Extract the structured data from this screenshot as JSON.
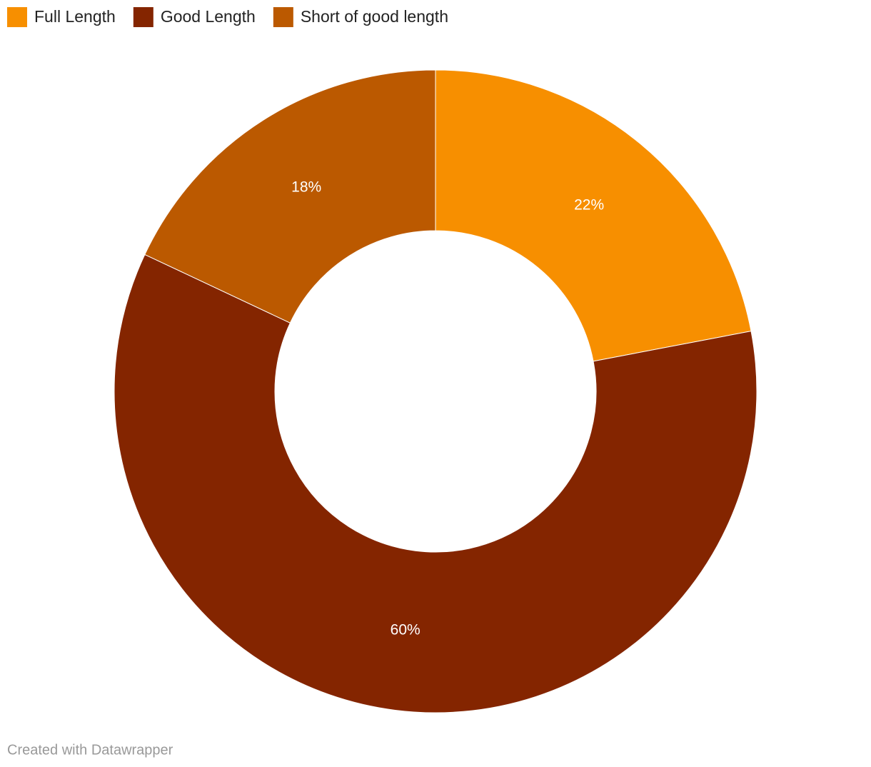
{
  "chart_data": {
    "type": "pie",
    "categories": [
      "Full Length",
      "Good Length",
      "Short of good length"
    ],
    "values": [
      22,
      60,
      18
    ],
    "value_labels": [
      "22%",
      "60%",
      "18%"
    ],
    "colors": [
      "#f78f00",
      "#842500",
      "#bb5900"
    ],
    "donut": true,
    "legend": "top-left"
  },
  "footer": "Created with Datawrapper"
}
